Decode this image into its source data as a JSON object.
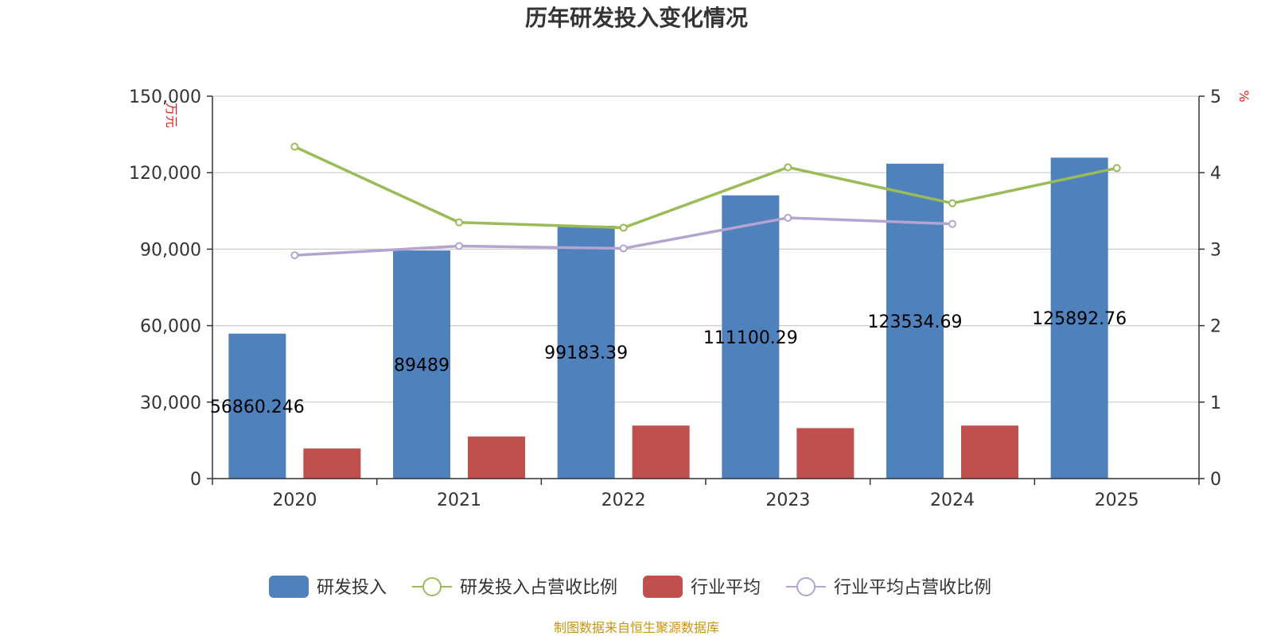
{
  "chart_data": {
    "type": "bar",
    "title": "历年研发投入变化情况",
    "categories": [
      "2020",
      "2021",
      "2022",
      "2023",
      "2024",
      "2025"
    ],
    "y_left": {
      "label": "万元",
      "min": 0,
      "max": 150000,
      "ticks": [
        "0",
        "30,000",
        "60,000",
        "90,000",
        "120,000",
        "150,000"
      ]
    },
    "y_right": {
      "label": "%",
      "min": 0,
      "max": 5,
      "ticks": [
        "0",
        "1",
        "2",
        "3",
        "4",
        "5"
      ]
    },
    "grid": true,
    "legend_position": "bottom",
    "series": [
      {
        "name": "研发投入",
        "type": "bar",
        "axis": "left",
        "color": "#4f81bd",
        "values": [
          56860.246,
          89489,
          99183.39,
          111100.29,
          123534.69,
          125892.76
        ],
        "labels": [
          "56860.246",
          "89489",
          "99183.39",
          "111100.29",
          "123534.69",
          "125892.76"
        ]
      },
      {
        "name": "研发投入占营收比例",
        "type": "line",
        "axis": "right",
        "color": "#9bbb59",
        "values": [
          4.34,
          3.35,
          3.28,
          4.07,
          3.6,
          4.06
        ]
      },
      {
        "name": "行业平均",
        "type": "bar",
        "axis": "left",
        "color": "#c0504d",
        "values": [
          11800,
          16500,
          20800,
          19800,
          20800,
          null
        ]
      },
      {
        "name": "行业平均占营收比例",
        "type": "line",
        "axis": "right",
        "color": "#b3a5d0",
        "values": [
          2.92,
          3.04,
          3.01,
          3.41,
          3.33,
          null
        ]
      }
    ],
    "source": "制图数据来自恒生聚源数据库"
  }
}
